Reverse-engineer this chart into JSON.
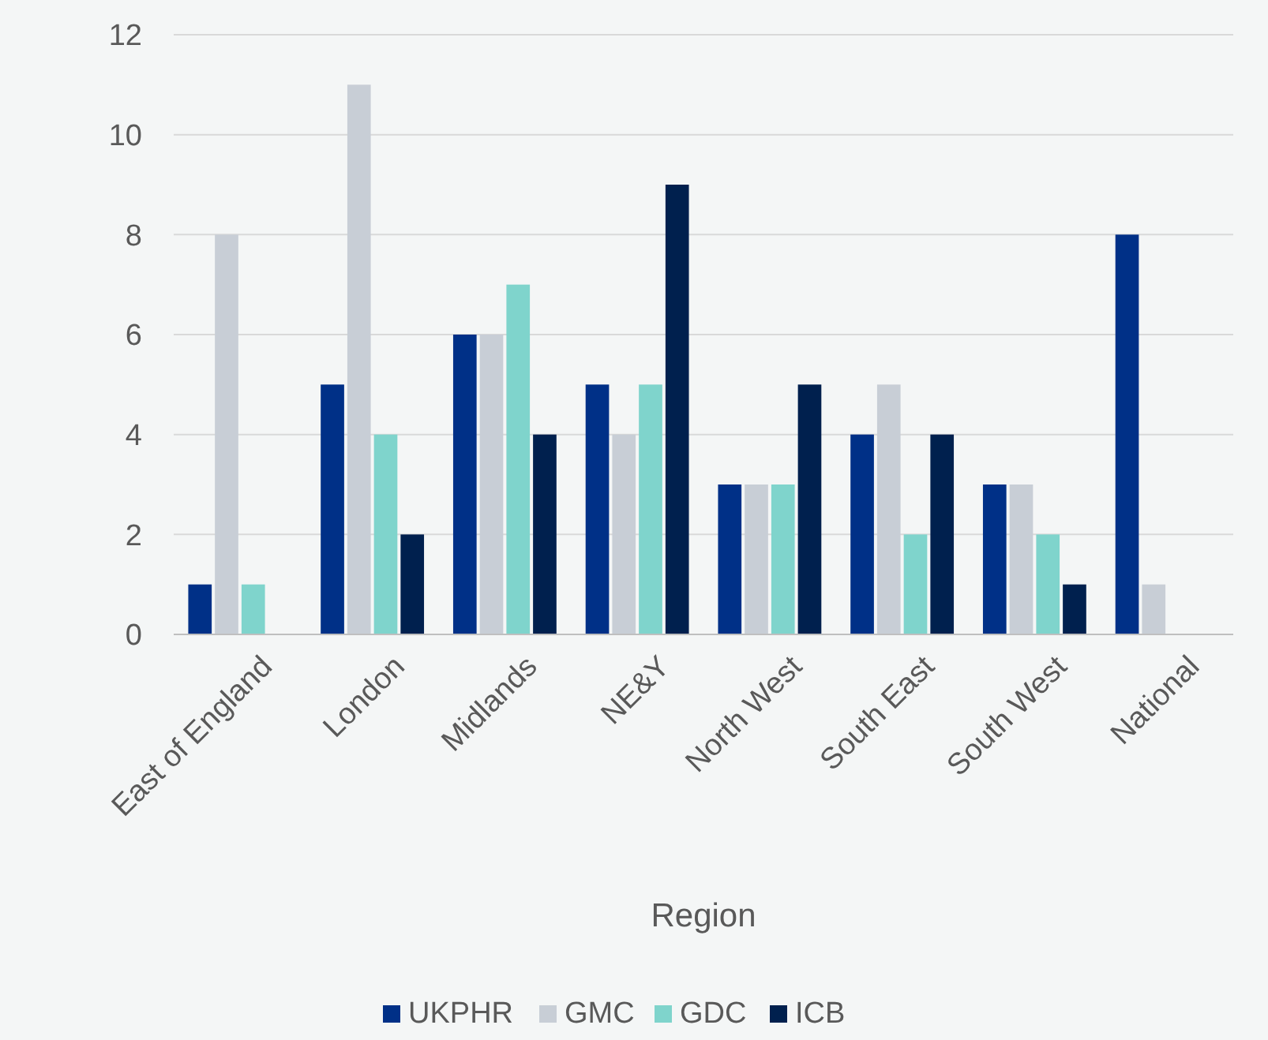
{
  "chart_data": {
    "type": "bar",
    "xlabel": "Region",
    "categories": [
      "East of England",
      "London",
      "Midlands",
      "NE&Y",
      "North West",
      "South East",
      "South West",
      "National"
    ],
    "series": [
      {
        "name": "UKPHR",
        "color": "#003087",
        "values": [
          1,
          5,
          6,
          5,
          3,
          4,
          3,
          8
        ]
      },
      {
        "name": "GMC",
        "color": "#c8ced6",
        "values": [
          8,
          11,
          6,
          4,
          3,
          5,
          3,
          1
        ]
      },
      {
        "name": "GDC",
        "color": "#7fd4cc",
        "values": [
          1,
          4,
          7,
          5,
          3,
          2,
          2,
          null
        ]
      },
      {
        "name": "ICB",
        "color": "#00204e",
        "values": [
          null,
          2,
          4,
          9,
          5,
          4,
          1,
          null
        ]
      }
    ],
    "ylim": [
      0,
      12
    ],
    "yticks": [
      0,
      2,
      4,
      6,
      8,
      10,
      12
    ],
    "grid": "y",
    "legend": "bottom"
  }
}
